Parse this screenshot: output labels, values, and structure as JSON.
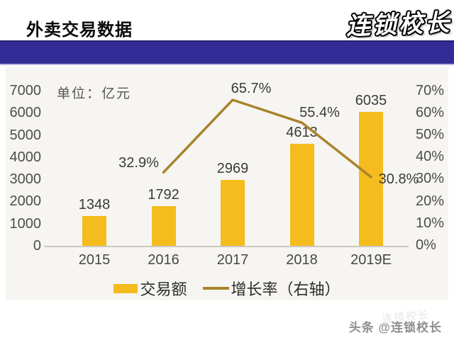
{
  "header": {
    "title": "外卖交易数据",
    "logo": "连锁校长"
  },
  "chart_data": {
    "type": "bar",
    "title": "外卖交易数据",
    "unit_label": "单位：亿元",
    "categories": [
      "2015",
      "2016",
      "2017",
      "2018",
      "2019E"
    ],
    "series": [
      {
        "name": "交易额",
        "type": "bar",
        "axis": "left",
        "values": [
          1348,
          1792,
          2969,
          4613,
          6035
        ],
        "color": "#F4BC1C"
      },
      {
        "name": "增长率（右轴）",
        "type": "line",
        "axis": "right",
        "values": [
          null,
          32.9,
          65.7,
          55.4,
          30.8
        ],
        "point_labels": [
          "32.9%",
          "65.7%",
          "55.4%",
          "30.8%"
        ],
        "color": "#A9842D"
      }
    ],
    "left_axis": {
      "ticks": [
        7000,
        6000,
        5000,
        4000,
        3000,
        2000,
        1000,
        0
      ],
      "min": 0,
      "max": 7000
    },
    "right_axis": {
      "ticks": [
        "70%",
        "60%",
        "50%",
        "40%",
        "30%",
        "20%",
        "10%",
        "0%"
      ],
      "min": 0,
      "max": 70
    },
    "legend": [
      "交易额",
      "增长率（右轴）"
    ],
    "legend_position": "bottom",
    "grid": false
  },
  "footer": {
    "watermark": "头条 @连锁校长",
    "watermark_ghost": "连锁校长"
  }
}
